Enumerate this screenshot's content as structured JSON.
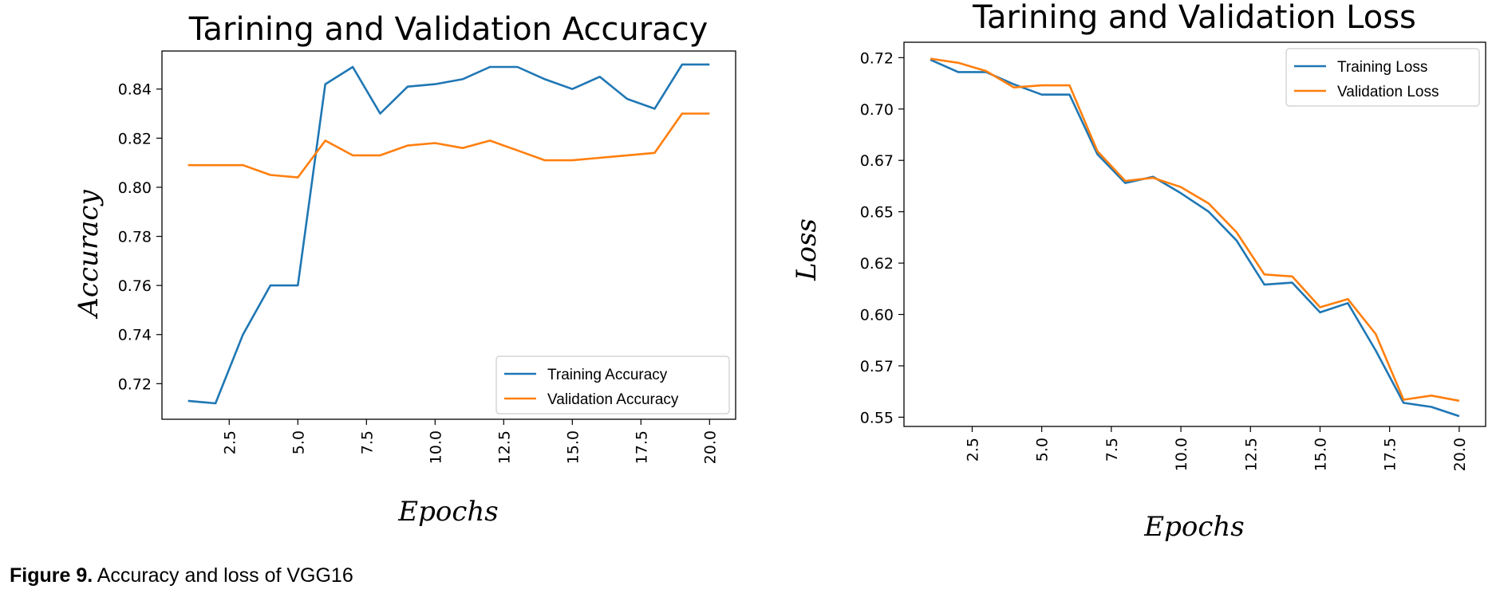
{
  "caption": {
    "label": "Figure 9.",
    "text": " Accuracy and loss of VGG16"
  },
  "colors": {
    "training": "#1f77b4",
    "validation": "#ff7f0e"
  },
  "chart_data": [
    {
      "type": "line",
      "title": "Tarining and Validation Accuracy",
      "xlabel": "Epochs",
      "ylabel": "Accuracy",
      "x": [
        1,
        2,
        3,
        4,
        5,
        6,
        7,
        8,
        9,
        10,
        11,
        12,
        13,
        14,
        15,
        16,
        17,
        18,
        19,
        20
      ],
      "xlim": [
        0.05,
        20.95
      ],
      "ylim": [
        0.7055,
        0.8555
      ],
      "xticks": [
        2.5,
        5.0,
        7.5,
        10.0,
        12.5,
        15.0,
        17.5,
        20.0
      ],
      "xtick_labels": [
        "2.5",
        "5.0",
        "7.5",
        "10.0",
        "12.5",
        "15.0",
        "17.5",
        "20.0"
      ],
      "yticks": [
        0.72,
        0.74,
        0.76,
        0.78,
        0.8,
        0.82,
        0.84
      ],
      "ytick_labels": [
        "0.72",
        "0.74",
        "0.76",
        "0.78",
        "0.80",
        "0.82",
        "0.84"
      ],
      "legend_position": "lower-right",
      "grid": false,
      "series": [
        {
          "name": "Training Accuracy",
          "values": [
            0.713,
            0.712,
            0.74,
            0.76,
            0.76,
            0.842,
            0.849,
            0.83,
            0.841,
            0.842,
            0.844,
            0.849,
            0.849,
            0.844,
            0.84,
            0.845,
            0.836,
            0.832,
            0.85,
            0.85
          ]
        },
        {
          "name": "Validation Accuracy",
          "values": [
            0.809,
            0.809,
            0.809,
            0.805,
            0.804,
            0.819,
            0.813,
            0.813,
            0.817,
            0.818,
            0.816,
            0.819,
            0.815,
            0.811,
            0.811,
            0.812,
            0.813,
            0.814,
            0.83,
            0.83
          ]
        }
      ]
    },
    {
      "type": "line",
      "title": "Tarining and Validation Loss",
      "xlabel": "Epochs",
      "ylabel": "Loss",
      "x": [
        1,
        2,
        3,
        4,
        5,
        6,
        7,
        8,
        9,
        10,
        11,
        12,
        13,
        14,
        15,
        16,
        17,
        18,
        19,
        20
      ],
      "xlim": [
        0.05,
        20.95
      ],
      "ylim": [
        0.5455,
        0.7325
      ],
      "xticks": [
        2.5,
        5.0,
        7.5,
        10.0,
        12.5,
        15.0,
        17.5,
        20.0
      ],
      "xtick_labels": [
        "2.5",
        "5.0",
        "7.5",
        "10.0",
        "12.5",
        "15.0",
        "17.5",
        "20.0"
      ],
      "yticks": [
        0.55,
        0.575,
        0.6,
        0.625,
        0.65,
        0.675,
        0.7,
        0.725
      ],
      "ytick_labels": [
        "0.55",
        "0.57",
        "0.60",
        "0.62",
        "0.65",
        "0.67",
        "0.70",
        "0.72"
      ],
      "legend_position": "upper-right",
      "grid": false,
      "series": [
        {
          "name": "Training Loss",
          "values": [
            0.724,
            0.718,
            0.718,
            0.712,
            0.707,
            0.707,
            0.678,
            0.664,
            0.667,
            0.659,
            0.65,
            0.636,
            0.6145,
            0.6155,
            0.601,
            0.6055,
            0.5825,
            0.557,
            0.555,
            0.5505
          ]
        },
        {
          "name": "Validation Loss",
          "values": [
            0.7245,
            0.7225,
            0.7185,
            0.7105,
            0.7115,
            0.7115,
            0.6795,
            0.665,
            0.6665,
            0.662,
            0.654,
            0.64,
            0.6195,
            0.6185,
            0.6035,
            0.6075,
            0.5905,
            0.5585,
            0.5605,
            0.558
          ]
        }
      ]
    }
  ]
}
